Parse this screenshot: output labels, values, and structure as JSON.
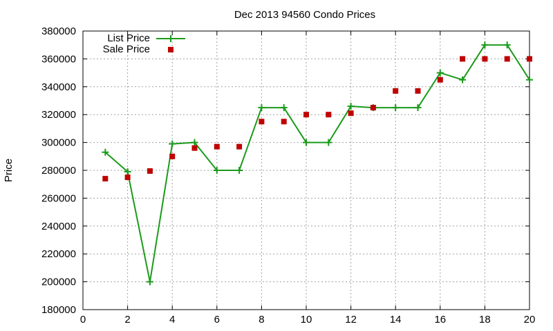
{
  "chart_data": {
    "type": "line",
    "title": "Dec 2013 94560 Condo Prices",
    "xlabel": "",
    "ylabel": "Price",
    "xlim": [
      0,
      20
    ],
    "ylim": [
      180000,
      380000
    ],
    "xticks": [
      "0",
      "2",
      "4",
      "6",
      "8",
      "10",
      "12",
      "14",
      "16",
      "18",
      "20"
    ],
    "yticks": [
      "180000",
      "200000",
      "220000",
      "240000",
      "260000",
      "280000",
      "300000",
      "320000",
      "340000",
      "360000",
      "380000"
    ],
    "grid": true,
    "legend_position": "top-left",
    "series": [
      {
        "name": "List Price",
        "style": "line-with-plus-markers",
        "color": "#1a9a1a",
        "x": [
          1,
          2,
          3,
          4,
          5,
          6,
          7,
          8,
          9,
          10,
          11,
          12,
          13,
          14,
          15,
          16,
          17,
          18,
          19,
          20
        ],
        "y": [
          293000,
          279000,
          200000,
          299000,
          300000,
          280000,
          280000,
          325000,
          325000,
          300000,
          300000,
          326000,
          325000,
          325000,
          325000,
          350000,
          345000,
          370000,
          370000,
          345000
        ]
      },
      {
        "name": "Sale Price",
        "style": "square-markers",
        "color": "#c00000",
        "x": [
          1,
          2,
          3,
          4,
          5,
          6,
          7,
          8,
          9,
          10,
          11,
          12,
          13,
          14,
          15,
          16,
          17,
          18,
          19,
          20
        ],
        "y": [
          274000,
          275000,
          279500,
          290000,
          296000,
          297000,
          297000,
          315000,
          315000,
          320000,
          320000,
          321000,
          325000,
          337000,
          337000,
          345000,
          360000,
          360000,
          360000,
          360000
        ]
      }
    ]
  }
}
